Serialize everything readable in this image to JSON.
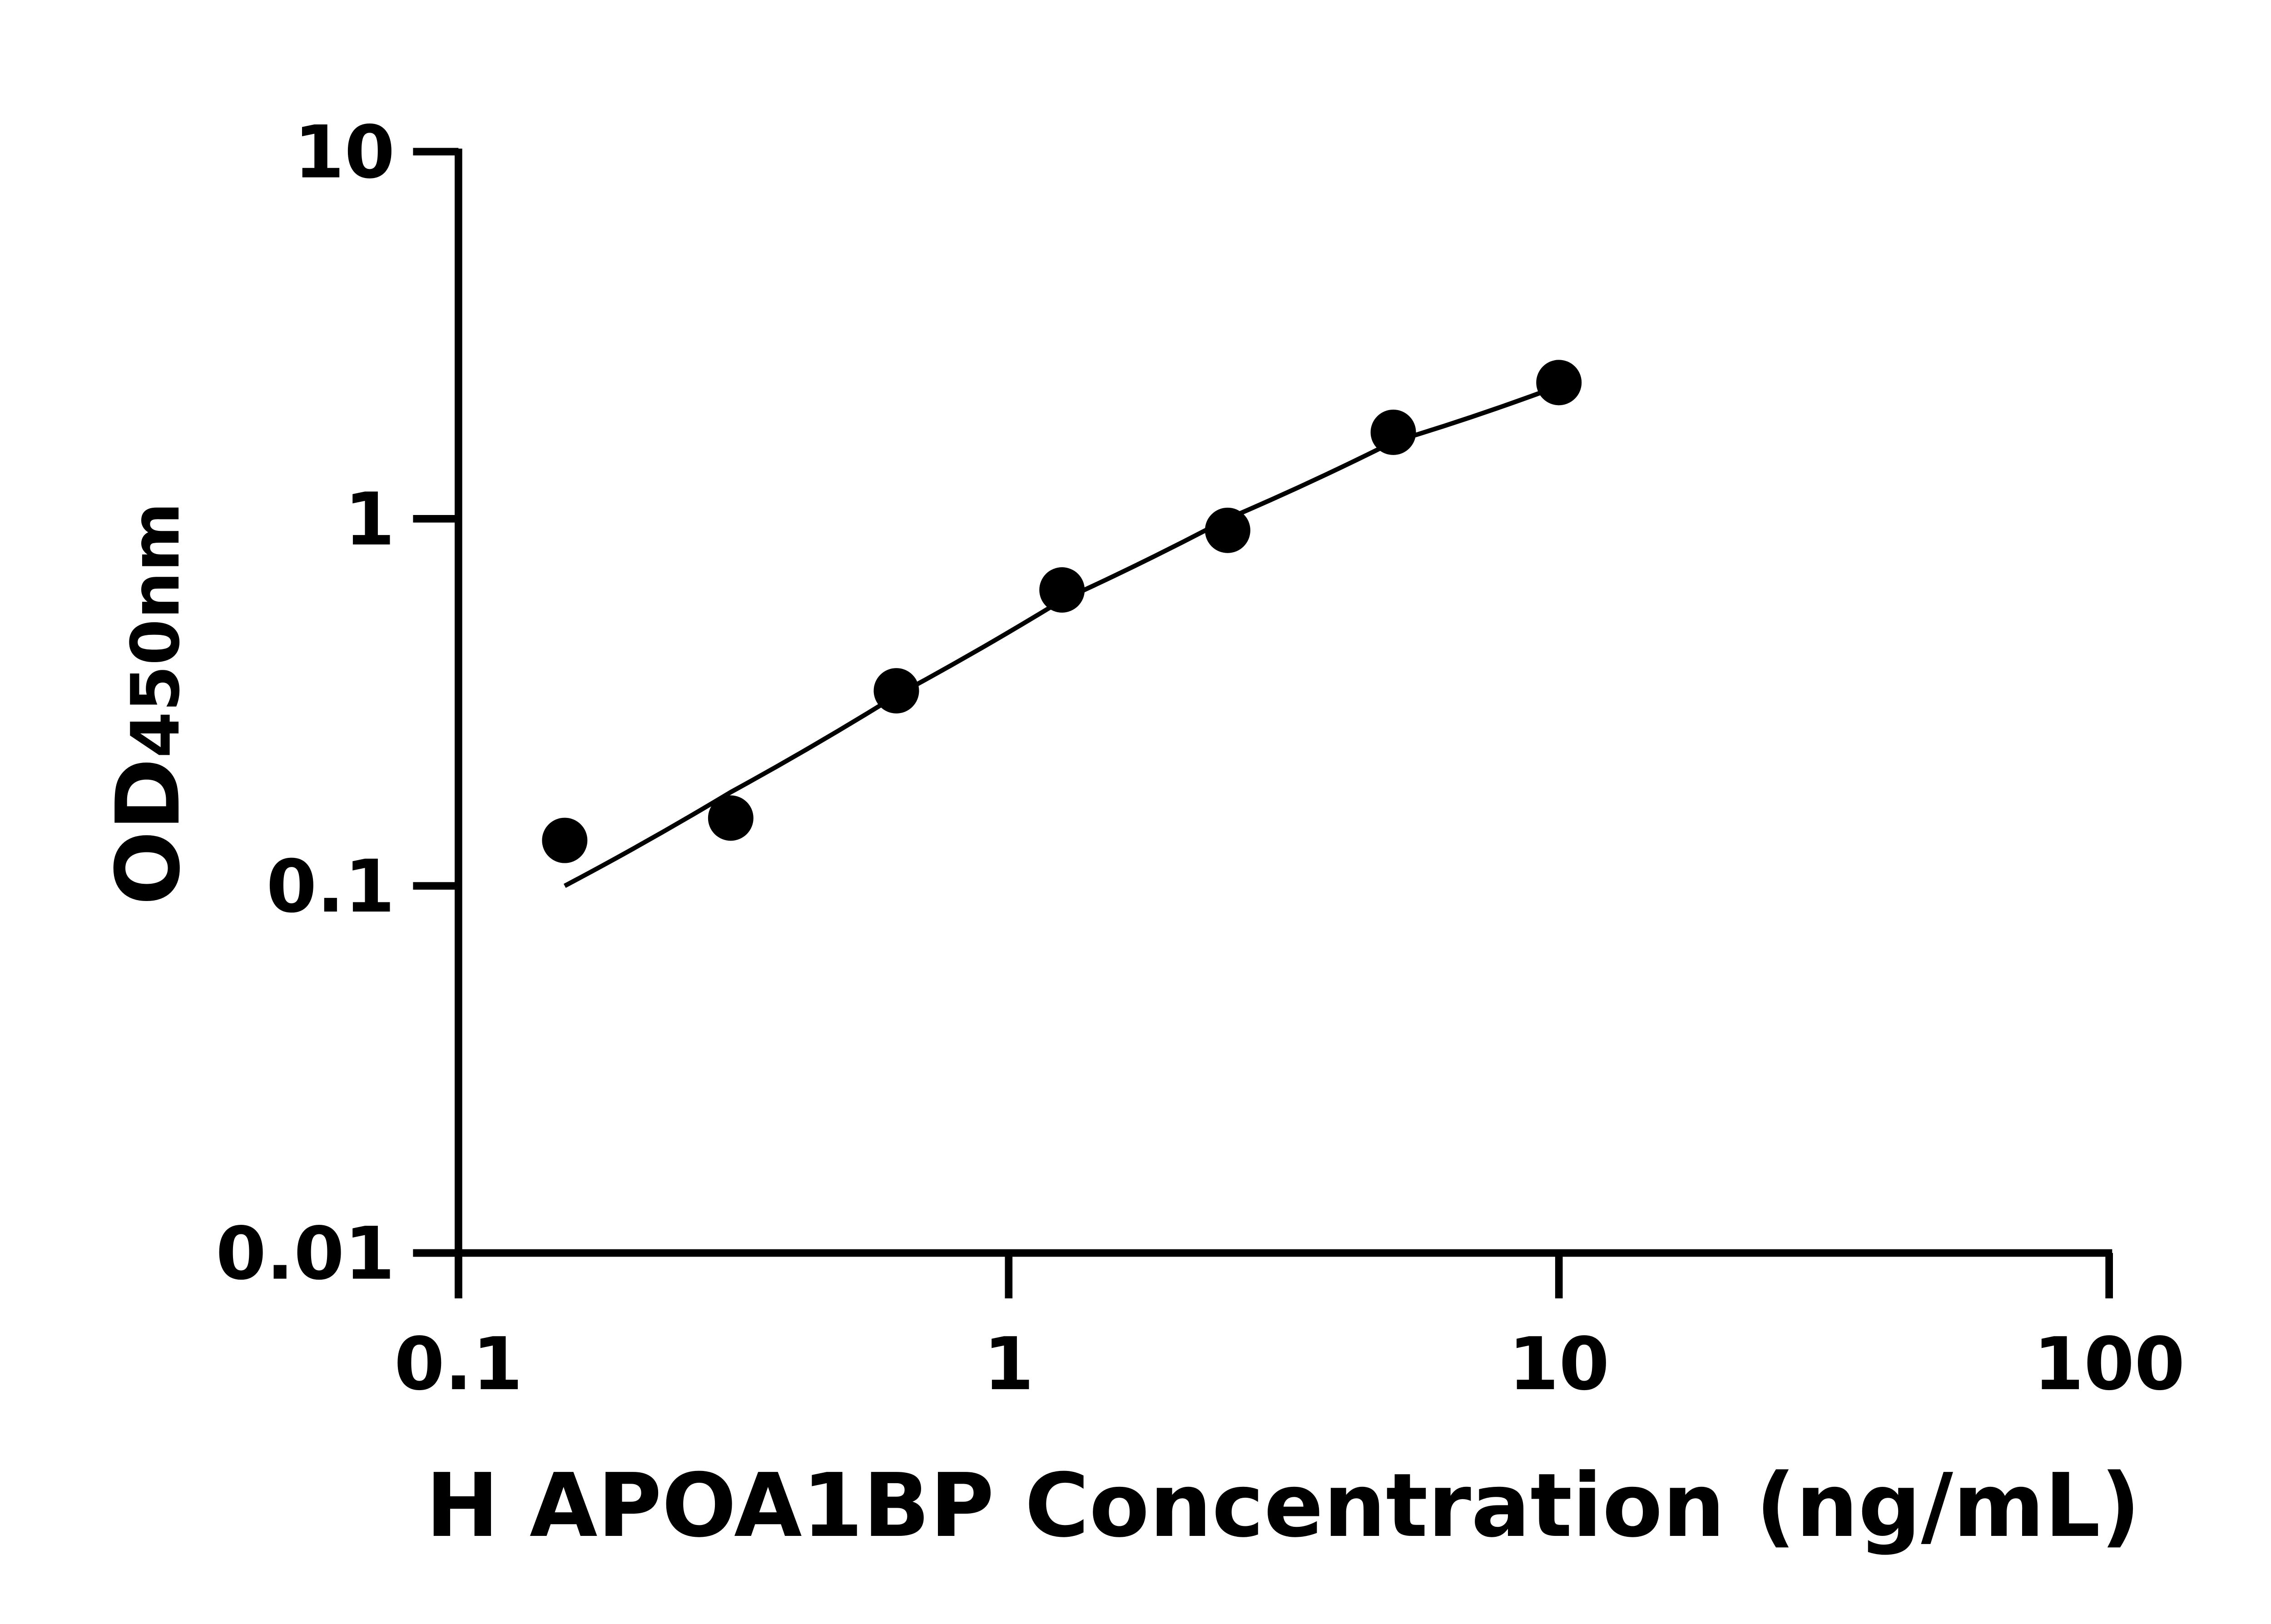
{
  "chart_data": {
    "type": "scatter",
    "title": "",
    "xlabel": "H APOA1BP Concentration (ng/mL)",
    "ylabel_main": "OD",
    "ylabel_sub": "450nm",
    "x_scale": "log",
    "y_scale": "log",
    "xlim": [
      0.1,
      100
    ],
    "ylim": [
      0.01,
      10
    ],
    "x_ticks": [
      "0.1",
      "1",
      "10",
      "100"
    ],
    "x_tick_values": [
      0.1,
      1,
      10,
      100
    ],
    "y_ticks": [
      "0.01",
      "0.1",
      "1",
      "10"
    ],
    "y_tick_values": [
      0.01,
      0.1,
      1,
      10
    ],
    "grid": false,
    "legend": "none",
    "points": {
      "x": [
        0.156,
        0.3125,
        0.625,
        1.25,
        2.5,
        5,
        10
      ],
      "y": [
        0.133,
        0.153,
        0.34,
        0.64,
        0.93,
        1.72,
        2.35
      ]
    },
    "fit_curve": {
      "x": [
        0.156,
        0.3125,
        0.625,
        1.25,
        2.5,
        5,
        10
      ],
      "y": [
        0.1,
        0.18,
        0.33,
        0.6,
        1.0,
        1.62,
        2.3
      ]
    },
    "colors": {
      "points": "#000000",
      "line": "#000000",
      "axes": "#000000"
    }
  }
}
